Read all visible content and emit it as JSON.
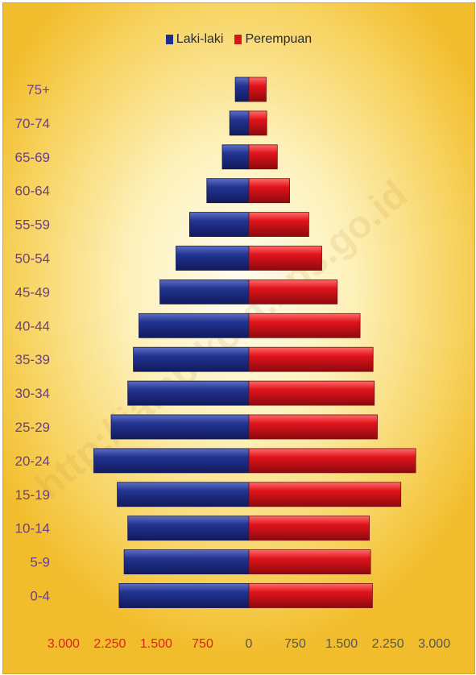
{
  "legend": {
    "male": "Laki-laki",
    "female": "Perempuan"
  },
  "watermark": "http://jambikota.bps.go.id",
  "colors": {
    "male": "#1f2e8a",
    "female": "#d9141b",
    "age_label": "#6b3f87",
    "tick_left": "#e02020",
    "tick_right": "#555555"
  },
  "chart_data": {
    "type": "bar",
    "orientation": "horizontal-population-pyramid",
    "categories": [
      "0-4",
      "5-9",
      "10-14",
      "15-19",
      "20-24",
      "25-29",
      "30-34",
      "35-39",
      "40-44",
      "45-49",
      "50-54",
      "55-59",
      "60-64",
      "65-69",
      "70-74",
      "75+"
    ],
    "series": [
      {
        "name": "Laki-laki",
        "side": "left",
        "values": [
          2100,
          2020,
          1960,
          2130,
          2510,
          2230,
          1960,
          1870,
          1780,
          1440,
          1180,
          960,
          680,
          430,
          310,
          220
        ]
      },
      {
        "name": "Perempuan",
        "side": "right",
        "values": [
          2000,
          1970,
          1950,
          2460,
          2700,
          2080,
          2030,
          2010,
          1800,
          1430,
          1180,
          970,
          660,
          460,
          290,
          280
        ]
      }
    ],
    "x_ticks_left": [
      "3.000",
      "2.250",
      "1.500",
      "750"
    ],
    "x_ticks_right": [
      "0",
      "750",
      "1.500",
      "2.250",
      "3.000"
    ],
    "xlim": [
      -3000,
      3000
    ],
    "grid": false,
    "legend_position": "top"
  }
}
